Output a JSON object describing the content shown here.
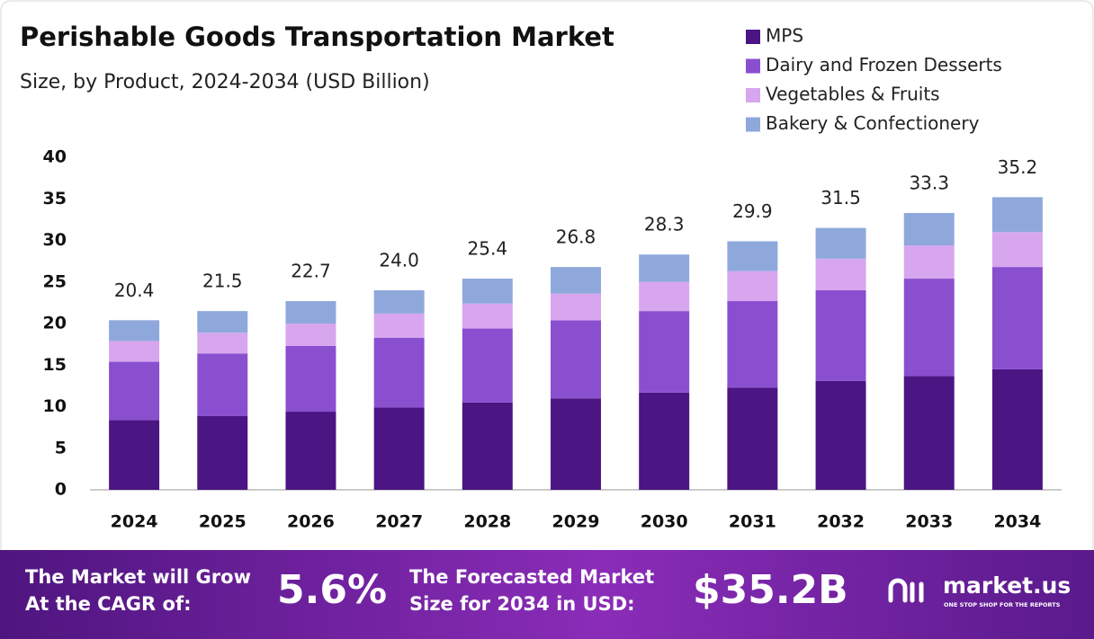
{
  "chart_data": {
    "type": "stacked_bar",
    "title": "Perishable Goods Transportation Market",
    "subtitle": "Size, by Product, 2024-2034 (USD Billion)",
    "categories": [
      "2024",
      "2025",
      "2026",
      "2027",
      "2028",
      "2029",
      "2030",
      "2031",
      "2032",
      "2033",
      "2034"
    ],
    "series": [
      {
        "name": "MPS",
        "color": "#4b1583",
        "values": [
          8.4,
          8.9,
          9.4,
          9.9,
          10.5,
          11.0,
          11.7,
          12.3,
          13.1,
          13.7,
          14.5
        ]
      },
      {
        "name": "Dairy and Frozen Desserts",
        "color": "#8a4fcf",
        "values": [
          7.0,
          7.5,
          7.9,
          8.4,
          8.9,
          9.4,
          9.8,
          10.4,
          10.9,
          11.7,
          12.3
        ]
      },
      {
        "name": "Vegetables & Fruits",
        "color": "#d7a6ef",
        "values": [
          2.5,
          2.5,
          2.7,
          2.9,
          3.0,
          3.2,
          3.5,
          3.6,
          3.8,
          4.0,
          4.2
        ]
      },
      {
        "name": "Bakery & Confectionery",
        "color": "#8fa8dc",
        "values": [
          2.5,
          2.6,
          2.7,
          2.8,
          3.0,
          3.2,
          3.3,
          3.6,
          3.7,
          3.9,
          4.2
        ]
      }
    ],
    "totals": {
      "values": [
        20.4,
        21.5,
        22.7,
        24.0,
        25.4,
        26.8,
        28.3,
        29.9,
        31.5,
        33.3,
        35.2
      ],
      "value_labels": [
        "20.4",
        "21.5",
        "22.7",
        "24.0",
        "25.4",
        "26.8",
        "28.3",
        "29.9",
        "31.5",
        "33.3",
        "35.2"
      ]
    },
    "ylim": [
      0,
      40
    ],
    "yticks": [
      0,
      5,
      10,
      15,
      20,
      25,
      30,
      35,
      40
    ],
    "grid": false,
    "legend": "top-right"
  },
  "banner": {
    "cagr_text": [
      "The Market will Grow",
      "At the CAGR of:"
    ],
    "cagr_value": "5.6%",
    "forecast_text": [
      "The Forecasted Market",
      "Size for 2034 in USD:"
    ],
    "forecast_value": "$35.2B",
    "brand": "market.us",
    "tagline": "ONE STOP SHOP FOR THE REPORTS"
  }
}
